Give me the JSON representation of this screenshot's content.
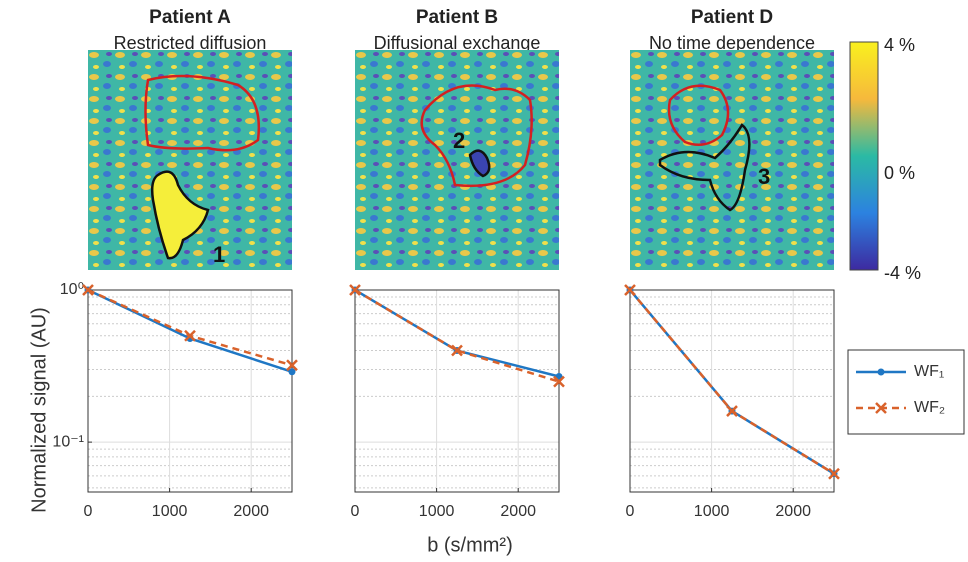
{
  "chart_data": [
    {
      "type": "line",
      "title": "Patient A",
      "subtitle": "Restricted diffusion",
      "image_label": "1",
      "x": [
        0,
        1250,
        2500
      ],
      "xlim": [
        0,
        2500
      ],
      "xticks": [
        0,
        1000,
        2000
      ],
      "ylim": [
        0.047,
        1
      ],
      "log_y": true,
      "grid": true,
      "yticks": [
        {
          "value": 0.1,
          "label": "10⁻¹"
        },
        {
          "value": 1,
          "label": "10⁰"
        }
      ],
      "yminor": [
        0.05,
        0.06,
        0.07,
        0.08,
        0.09,
        0.2,
        0.3,
        0.4,
        0.5,
        0.6,
        0.7,
        0.8,
        0.9
      ],
      "series": [
        {
          "name": "WF₁",
          "color": "#1f77c4",
          "style": "solid",
          "marker": "dot",
          "values": [
            1,
            0.48,
            0.29
          ]
        },
        {
          "name": "WF₂",
          "color": "#d9622b",
          "style": "dashed",
          "marker": "x",
          "values": [
            1,
            0.5,
            0.32
          ]
        }
      ]
    },
    {
      "type": "line",
      "title": "Patient B",
      "subtitle": "Diffusional exchange",
      "image_label": "2",
      "x": [
        0,
        1250,
        2500
      ],
      "xlim": [
        0,
        2500
      ],
      "xticks": [
        0,
        1000,
        2000
      ],
      "ylim": [
        0.047,
        1
      ],
      "log_y": true,
      "grid": true,
      "yticks": [
        {
          "value": 0.1,
          "label": "10⁻¹"
        },
        {
          "value": 1,
          "label": "10⁰"
        }
      ],
      "yminor": [
        0.05,
        0.06,
        0.07,
        0.08,
        0.09,
        0.2,
        0.3,
        0.4,
        0.5,
        0.6,
        0.7,
        0.8,
        0.9
      ],
      "series": [
        {
          "name": "WF₁",
          "color": "#1f77c4",
          "style": "solid",
          "marker": "dot",
          "values": [
            1,
            0.4,
            0.27
          ]
        },
        {
          "name": "WF₂",
          "color": "#d9622b",
          "style": "dashed",
          "marker": "x",
          "values": [
            1,
            0.4,
            0.25
          ]
        }
      ]
    },
    {
      "type": "line",
      "title": "Patient D",
      "subtitle": "No time dependence",
      "image_label": "3",
      "x": [
        0,
        1250,
        2500
      ],
      "xlim": [
        0,
        2500
      ],
      "xticks": [
        0,
        1000,
        2000
      ],
      "ylim": [
        0.047,
        1
      ],
      "log_y": true,
      "grid": true,
      "yticks": [
        {
          "value": 0.1,
          "label": "10⁻¹"
        },
        {
          "value": 1,
          "label": "10⁰"
        }
      ],
      "yminor": [
        0.05,
        0.06,
        0.07,
        0.08,
        0.09,
        0.2,
        0.3,
        0.4,
        0.5,
        0.6,
        0.7,
        0.8,
        0.9
      ],
      "series": [
        {
          "name": "WF₁",
          "color": "#1f77c4",
          "style": "solid",
          "marker": "dot",
          "values": [
            1,
            0.16,
            0.062
          ]
        },
        {
          "name": "WF₂",
          "color": "#d9622b",
          "style": "dashed",
          "marker": "x",
          "values": [
            1,
            0.16,
            0.062
          ]
        }
      ]
    }
  ],
  "figure": {
    "xlabel": "b (s/mm²)",
    "ylabel": "Normalized signal (AU)",
    "colorbar": {
      "labels": [
        "4 %",
        "0 %",
        "-4 %"
      ]
    }
  }
}
